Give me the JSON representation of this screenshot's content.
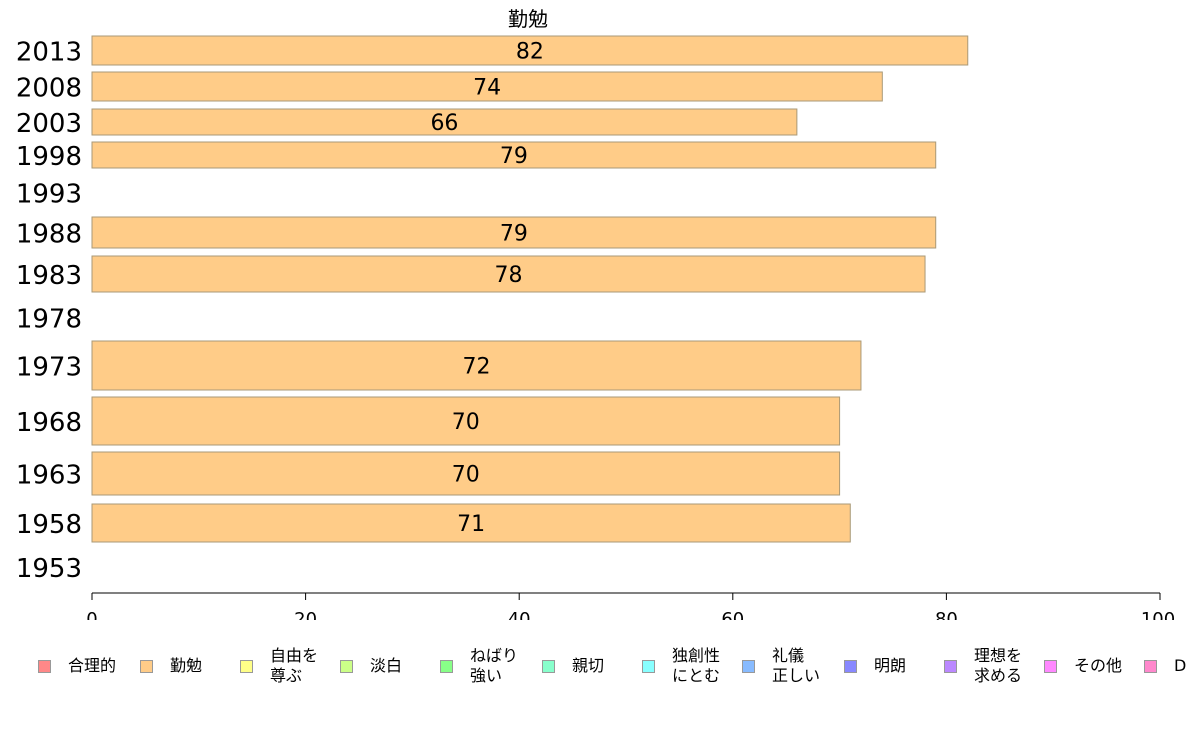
{
  "chart_data": {
    "type": "bar",
    "orientation": "horizontal",
    "title": "勤勉",
    "categories": [
      "2013",
      "2008",
      "2003",
      "1998",
      "1993",
      "1988",
      "1983",
      "1978",
      "1973",
      "1968",
      "1963",
      "1958",
      "1953"
    ],
    "series": [
      {
        "name": "勤勉",
        "values": [
          82,
          74,
          66,
          79,
          null,
          79,
          78,
          null,
          72,
          70,
          70,
          71,
          null
        ],
        "color": "#ffcc88"
      }
    ],
    "xlim": [
      0,
      100
    ],
    "xticks": [
      "0",
      "20",
      "40",
      "60",
      "80",
      "100"
    ],
    "grid": false,
    "legend_position": "bottom"
  },
  "legend": {
    "items": [
      {
        "label": "合理的",
        "color": "#ff8888"
      },
      {
        "label": "勤勉",
        "color": "#ffcc88"
      },
      {
        "label": "自由を\n尊ぶ",
        "color": "#ffff88"
      },
      {
        "label": "淡白",
        "color": "#ccff88"
      },
      {
        "label": "ねばり\n強い",
        "color": "#88ff88"
      },
      {
        "label": "親切",
        "color": "#88ffcc"
      },
      {
        "label": "独創性\nにとむ",
        "color": "#88ffff"
      },
      {
        "label": "礼儀\n正しい",
        "color": "#88bbff"
      },
      {
        "label": "明朗",
        "color": "#8888ff"
      },
      {
        "label": "理想を\n求める",
        "color": "#bb88ff"
      },
      {
        "label": "その他",
        "color": "#ff88ff"
      },
      {
        "label": "D",
        "color": "#ff88cc"
      }
    ]
  }
}
